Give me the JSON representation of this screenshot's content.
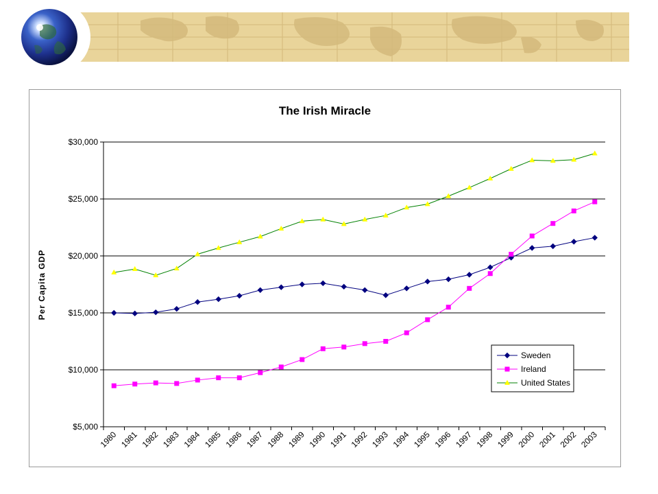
{
  "colors": {
    "banner_parchment": "#e9d49a",
    "banner_grid": "#c9ae6d",
    "banner_land": "#d4ba7c",
    "frame_border": "#9a9a9a",
    "gridline": "#000000",
    "sweden": "#00007f",
    "ireland": "#ff00ff",
    "united_states": "#ffff00",
    "united_states_line": "#008000"
  },
  "banner": {
    "globe_icon": "globe-icon"
  },
  "chart_data": {
    "type": "line",
    "title": "The Irish Miracle",
    "xlabel": "",
    "ylabel": "Per Capita GDP",
    "ylim": [
      5000,
      30000
    ],
    "ytick_values": [
      5000,
      10000,
      15000,
      20000,
      25000,
      30000
    ],
    "ytick_labels": [
      "$5,000",
      "$10,000",
      "$15,000",
      "$20,000",
      "$25,000",
      "$30,000"
    ],
    "grid": true,
    "legend_position": "bottom-right",
    "categories": [
      "1980",
      "1981",
      "1982",
      "1983",
      "1984",
      "1985",
      "1986",
      "1987",
      "1988",
      "1989",
      "1990",
      "1991",
      "1992",
      "1993",
      "1994",
      "1995",
      "1996",
      "1997",
      "1998",
      "1999",
      "2000",
      "2001",
      "2002",
      "2003"
    ],
    "series": [
      {
        "name": "Sweden",
        "marker": "diamond",
        "color": "#00007f",
        "values": [
          15000,
          14950,
          15050,
          15350,
          15950,
          16200,
          16500,
          17000,
          17250,
          17500,
          17600,
          17300,
          17000,
          16550,
          17150,
          17750,
          17950,
          18350,
          19000,
          19850,
          20700,
          20850,
          21250,
          21600
        ]
      },
      {
        "name": "Ireland",
        "marker": "square",
        "color": "#ff00ff",
        "values": [
          8600,
          8750,
          8850,
          8800,
          9100,
          9300,
          9300,
          9750,
          10250,
          10900,
          11850,
          12000,
          12300,
          12500,
          13250,
          14400,
          15500,
          17150,
          18450,
          20150,
          21750,
          22850,
          23950,
          24750
        ]
      },
      {
        "name": "United States",
        "marker": "triangle",
        "color": "#ffff00",
        "line_color": "#008000",
        "values": [
          18550,
          18850,
          18300,
          18900,
          20150,
          20700,
          21200,
          21700,
          22400,
          23050,
          23200,
          22800,
          23200,
          23550,
          24250,
          24550,
          25250,
          26000,
          26800,
          27650,
          28400,
          28350,
          28450,
          29000
        ]
      }
    ]
  }
}
